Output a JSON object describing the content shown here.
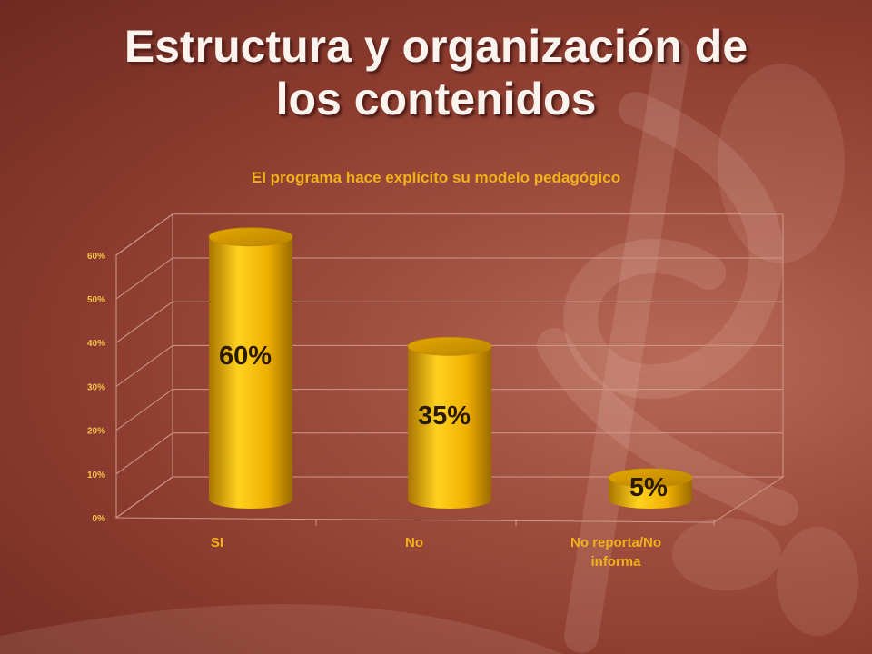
{
  "slide": {
    "title_line1": "Estructura y organización de",
    "title_line2": "los contenidos"
  },
  "chart_data": {
    "type": "bar",
    "style": "3d-cylinder",
    "title": "El programa hace explícito su modelo pedagógico",
    "categories": [
      "SI",
      "No",
      "No reporta/No informa"
    ],
    "category_lines": [
      [
        "SI"
      ],
      [
        "No"
      ],
      [
        "No reporta/No",
        "informa"
      ]
    ],
    "values": [
      0.6,
      0.35,
      0.05
    ],
    "data_labels": [
      "60%",
      "35%",
      "5%"
    ],
    "yticks": [
      "0%",
      "10%",
      "20%",
      "30%",
      "40%",
      "50%",
      "60%"
    ],
    "ylim": [
      0,
      0.6
    ],
    "grid": true,
    "legend": false,
    "colors": {
      "bar": "#f0b400",
      "bar_light": "#ffd21e",
      "bar_dark": "#9a6a00",
      "grid": "#cf9a8c",
      "text": "#f2b21c"
    }
  }
}
